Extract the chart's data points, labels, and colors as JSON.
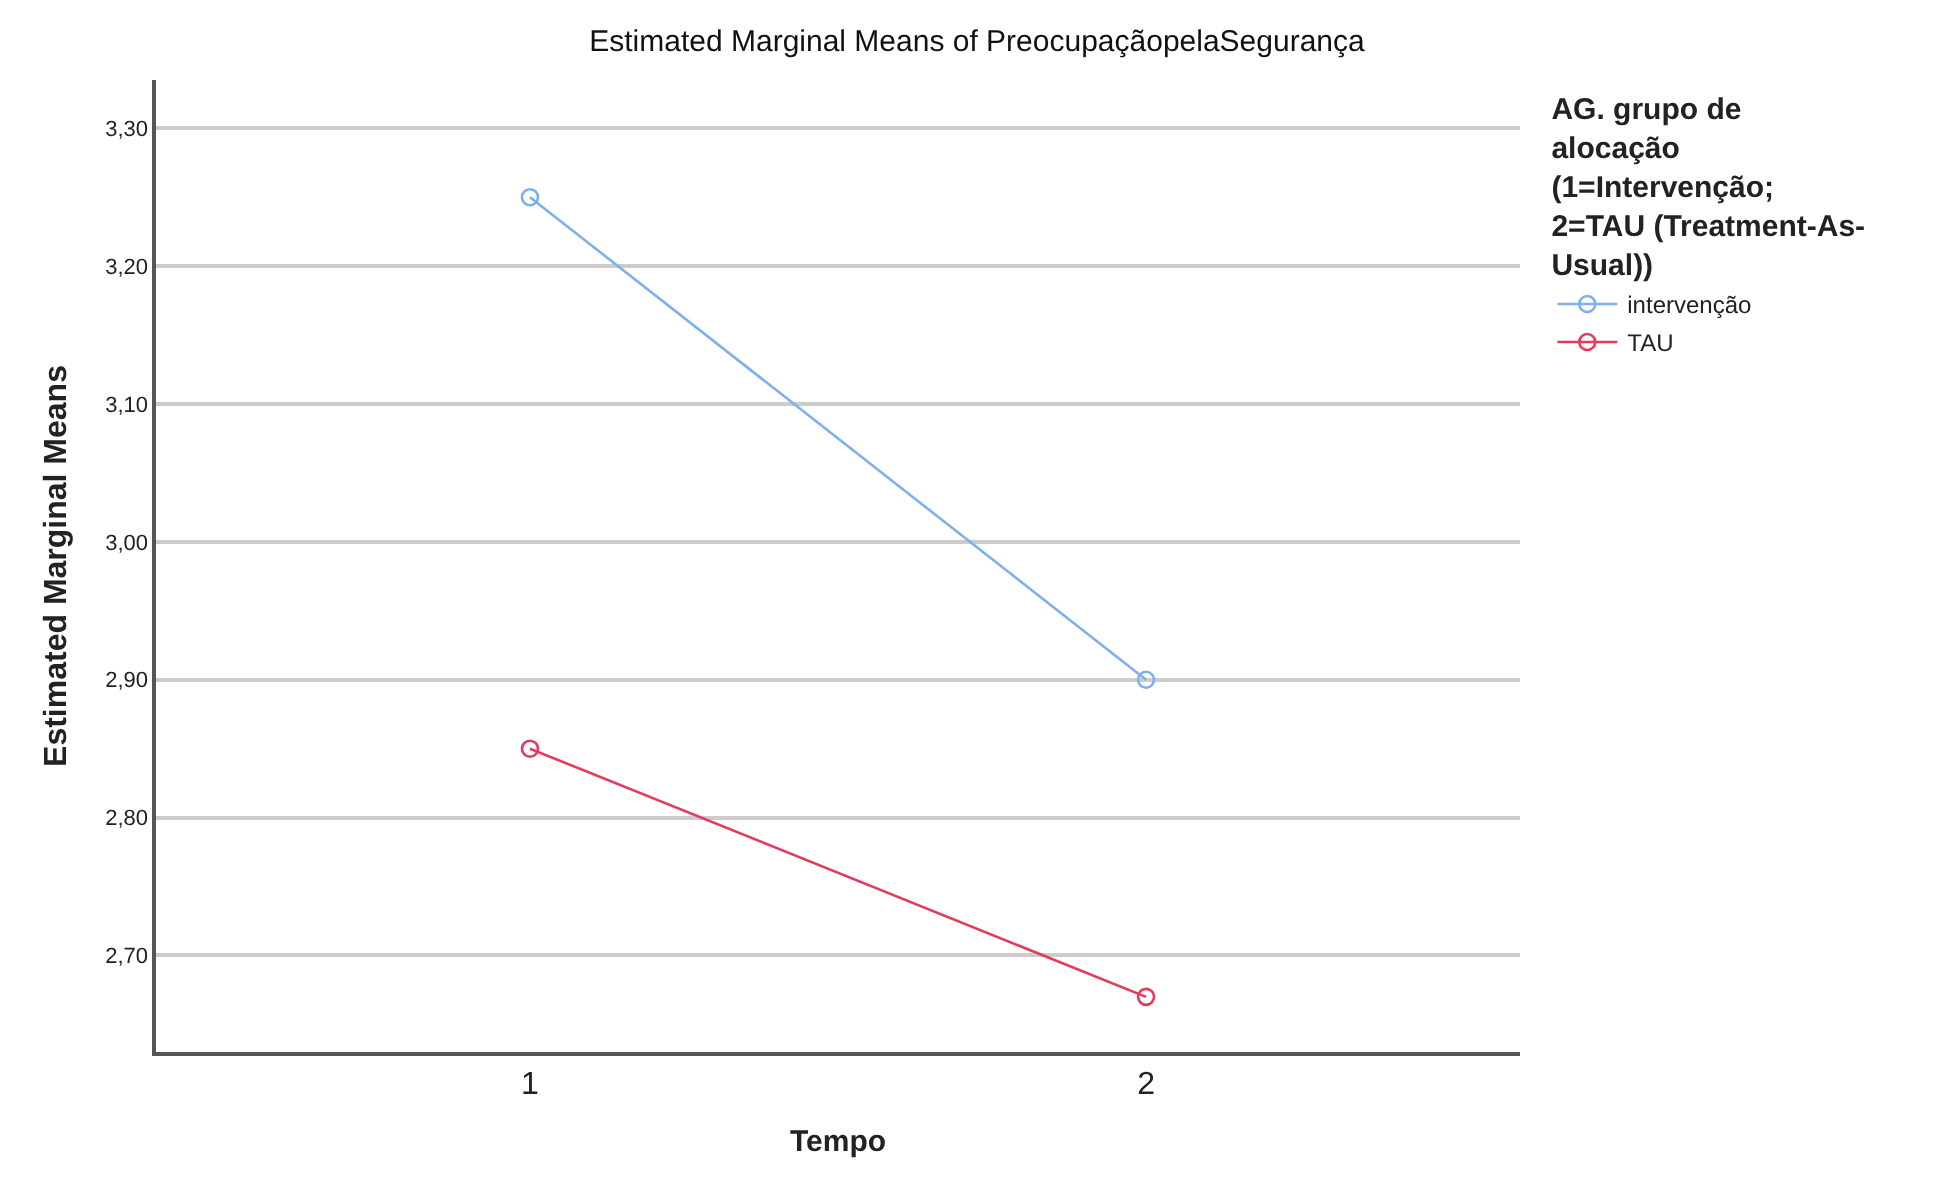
{
  "chart_data": {
    "type": "line",
    "title": "Estimated Marginal Means of PreocupaçãopelaSegurança",
    "xlabel": "Tempo",
    "ylabel": "Estimated Marginal Means",
    "legend_title": "AG. grupo de alocação (1=Intervenção; 2=TAU (Treatment-As-Usual))",
    "categories": [
      "1",
      "2"
    ],
    "series": [
      {
        "name": "intervenção",
        "color": "#7eb0ec",
        "values": [
          3.25,
          2.9
        ]
      },
      {
        "name": "TAU",
        "color": "#e23b5c",
        "values": [
          2.85,
          2.67
        ]
      }
    ],
    "ylim": [
      2.63,
      3.335
    ],
    "yticks": [
      {
        "value": 2.7,
        "label": "2,70"
      },
      {
        "value": 2.8,
        "label": "2,80"
      },
      {
        "value": 2.9,
        "label": "2,90"
      },
      {
        "value": 3.0,
        "label": "3,00"
      },
      {
        "value": 3.1,
        "label": "3,10"
      },
      {
        "value": 3.2,
        "label": "3,20"
      },
      {
        "value": 3.3,
        "label": "3,30"
      }
    ],
    "grid": "y",
    "legend": "top right",
    "marker": "circle",
    "line_style": "solid"
  }
}
